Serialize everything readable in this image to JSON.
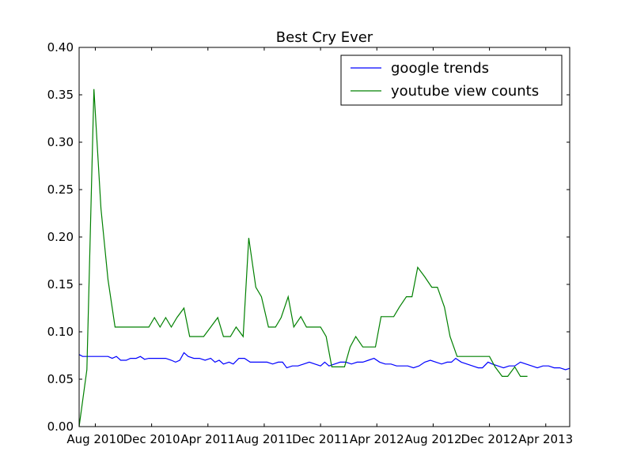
{
  "chart_data": {
    "type": "line",
    "title": "Best Cry Ever",
    "xlabel": "",
    "ylabel": "",
    "ylim": [
      0,
      0.4
    ],
    "yticks": [
      "0.00",
      "0.05",
      "0.10",
      "0.15",
      "0.20",
      "0.25",
      "0.30",
      "0.35",
      "0.40"
    ],
    "xticks": [
      "Aug 2010",
      "Dec 2010",
      "Apr 2011",
      "Aug 2011",
      "Dec 2011",
      "Apr 2012",
      "Aug 2012",
      "Dec 2012",
      "Apr 2013"
    ],
    "xlim_months": [
      -1.15,
      33.7
    ],
    "legend": {
      "position": "top-right"
    },
    "series": [
      {
        "name": "google trends",
        "color": "#0000ff",
        "points": [
          [
            -1.15,
            0.076
          ],
          [
            -0.9,
            0.074
          ],
          [
            -0.7,
            0.074
          ],
          [
            -0.4,
            0.074
          ],
          [
            0.0,
            0.074
          ],
          [
            0.4,
            0.074
          ],
          [
            0.9,
            0.074
          ],
          [
            1.2,
            0.072
          ],
          [
            1.5,
            0.074
          ],
          [
            1.8,
            0.07
          ],
          [
            2.2,
            0.07
          ],
          [
            2.5,
            0.072
          ],
          [
            2.9,
            0.072
          ],
          [
            3.2,
            0.074
          ],
          [
            3.5,
            0.071
          ],
          [
            3.8,
            0.072
          ],
          [
            4.2,
            0.072
          ],
          [
            4.6,
            0.072
          ],
          [
            5.0,
            0.072
          ],
          [
            5.4,
            0.07
          ],
          [
            5.7,
            0.068
          ],
          [
            6.0,
            0.07
          ],
          [
            6.3,
            0.078
          ],
          [
            6.6,
            0.074
          ],
          [
            7.0,
            0.072
          ],
          [
            7.4,
            0.072
          ],
          [
            7.8,
            0.07
          ],
          [
            8.2,
            0.072
          ],
          [
            8.5,
            0.068
          ],
          [
            8.8,
            0.07
          ],
          [
            9.1,
            0.066
          ],
          [
            9.5,
            0.068
          ],
          [
            9.8,
            0.066
          ],
          [
            10.2,
            0.072
          ],
          [
            10.6,
            0.072
          ],
          [
            11.0,
            0.068
          ],
          [
            11.4,
            0.068
          ],
          [
            11.8,
            0.068
          ],
          [
            12.2,
            0.068
          ],
          [
            12.6,
            0.066
          ],
          [
            13.0,
            0.068
          ],
          [
            13.3,
            0.068
          ],
          [
            13.6,
            0.062
          ],
          [
            14.0,
            0.064
          ],
          [
            14.4,
            0.064
          ],
          [
            14.8,
            0.066
          ],
          [
            15.2,
            0.068
          ],
          [
            15.6,
            0.066
          ],
          [
            16.0,
            0.064
          ],
          [
            16.3,
            0.068
          ],
          [
            16.6,
            0.064
          ],
          [
            17.0,
            0.066
          ],
          [
            17.4,
            0.068
          ],
          [
            17.8,
            0.068
          ],
          [
            18.2,
            0.066
          ],
          [
            18.6,
            0.068
          ],
          [
            19.0,
            0.068
          ],
          [
            19.4,
            0.07
          ],
          [
            19.8,
            0.072
          ],
          [
            20.2,
            0.068
          ],
          [
            20.6,
            0.066
          ],
          [
            21.0,
            0.066
          ],
          [
            21.4,
            0.064
          ],
          [
            21.8,
            0.064
          ],
          [
            22.2,
            0.064
          ],
          [
            22.6,
            0.062
          ],
          [
            23.0,
            0.064
          ],
          [
            23.4,
            0.068
          ],
          [
            23.8,
            0.07
          ],
          [
            24.2,
            0.068
          ],
          [
            24.6,
            0.066
          ],
          [
            25.0,
            0.068
          ],
          [
            25.3,
            0.068
          ],
          [
            25.6,
            0.072
          ],
          [
            26.0,
            0.068
          ],
          [
            26.4,
            0.066
          ],
          [
            26.8,
            0.064
          ],
          [
            27.2,
            0.062
          ],
          [
            27.5,
            0.062
          ],
          [
            27.9,
            0.068
          ],
          [
            28.2,
            0.066
          ],
          [
            28.6,
            0.064
          ],
          [
            29.0,
            0.062
          ],
          [
            29.4,
            0.064
          ],
          [
            29.8,
            0.064
          ],
          [
            30.2,
            0.068
          ],
          [
            30.6,
            0.066
          ],
          [
            31.0,
            0.064
          ],
          [
            31.4,
            0.062
          ],
          [
            31.8,
            0.064
          ],
          [
            32.2,
            0.064
          ],
          [
            32.6,
            0.062
          ],
          [
            33.0,
            0.062
          ],
          [
            33.4,
            0.06
          ],
          [
            33.8,
            0.062
          ],
          [
            34.2,
            0.064
          ],
          [
            34.6,
            0.066
          ]
        ]
      },
      {
        "name": "youtube view counts",
        "color": "#008000",
        "points": [
          [
            -1.15,
            0.0
          ],
          [
            -0.6,
            0.06
          ],
          [
            -0.1,
            0.356
          ],
          [
            0.4,
            0.23
          ],
          [
            0.9,
            0.155
          ],
          [
            1.4,
            0.105
          ],
          [
            2.0,
            0.105
          ],
          [
            2.6,
            0.105
          ],
          [
            3.2,
            0.105
          ],
          [
            3.8,
            0.105
          ],
          [
            4.2,
            0.115
          ],
          [
            4.6,
            0.105
          ],
          [
            5.0,
            0.115
          ],
          [
            5.4,
            0.105
          ],
          [
            5.8,
            0.115
          ],
          [
            6.3,
            0.125
          ],
          [
            6.7,
            0.095
          ],
          [
            7.2,
            0.095
          ],
          [
            7.7,
            0.095
          ],
          [
            8.2,
            0.105
          ],
          [
            8.7,
            0.115
          ],
          [
            9.1,
            0.095
          ],
          [
            9.6,
            0.095
          ],
          [
            10.0,
            0.105
          ],
          [
            10.5,
            0.095
          ],
          [
            10.9,
            0.199
          ],
          [
            11.4,
            0.147
          ],
          [
            11.8,
            0.137
          ],
          [
            12.3,
            0.105
          ],
          [
            12.8,
            0.105
          ],
          [
            13.2,
            0.115
          ],
          [
            13.7,
            0.137
          ],
          [
            14.1,
            0.105
          ],
          [
            14.6,
            0.116
          ],
          [
            15.0,
            0.105
          ],
          [
            15.5,
            0.105
          ],
          [
            16.0,
            0.105
          ],
          [
            16.4,
            0.095
          ],
          [
            16.8,
            0.063
          ],
          [
            17.2,
            0.063
          ],
          [
            17.7,
            0.063
          ],
          [
            18.1,
            0.084
          ],
          [
            18.5,
            0.095
          ],
          [
            19.0,
            0.084
          ],
          [
            19.4,
            0.084
          ],
          [
            19.9,
            0.084
          ],
          [
            20.3,
            0.116
          ],
          [
            20.8,
            0.116
          ],
          [
            21.2,
            0.116
          ],
          [
            21.6,
            0.126
          ],
          [
            22.1,
            0.137
          ],
          [
            22.5,
            0.137
          ],
          [
            22.9,
            0.168
          ],
          [
            23.4,
            0.158
          ],
          [
            23.9,
            0.147
          ],
          [
            24.3,
            0.147
          ],
          [
            24.8,
            0.126
          ],
          [
            25.2,
            0.095
          ],
          [
            25.7,
            0.074
          ],
          [
            26.1,
            0.074
          ],
          [
            26.6,
            0.074
          ],
          [
            27.0,
            0.074
          ],
          [
            27.5,
            0.074
          ],
          [
            28.0,
            0.074
          ],
          [
            28.4,
            0.063
          ],
          [
            28.9,
            0.053
          ],
          [
            29.3,
            0.053
          ],
          [
            29.8,
            0.063
          ],
          [
            30.2,
            0.053
          ],
          [
            30.7,
            0.053
          ]
        ]
      }
    ]
  }
}
